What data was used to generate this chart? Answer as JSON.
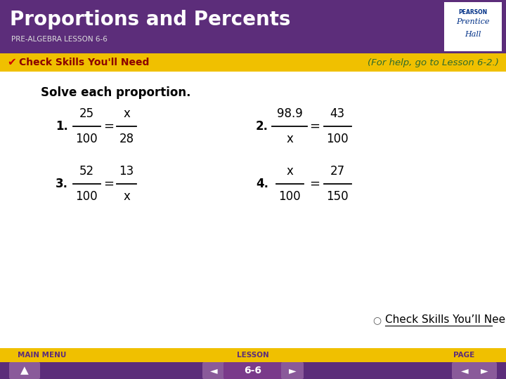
{
  "title": "Proportions and Percents",
  "subtitle": "PRE-ALGEBRA LESSON 6-6",
  "banner_text": "Check Skills You'll Need",
  "banner_right": "(For help, go to Lesson 6-2.)",
  "instruction": "Solve each proportion.",
  "problems": [
    {
      "num": "1.",
      "frac1_top": "25",
      "frac1_bot": "100",
      "frac2_top": "x",
      "frac2_bot": "28"
    },
    {
      "num": "2.",
      "frac1_top": "98.9",
      "frac1_bot": "x",
      "frac2_top": "43",
      "frac2_bot": "100"
    },
    {
      "num": "3.",
      "frac1_top": "52",
      "frac1_bot": "100",
      "frac2_top": "13",
      "frac2_bot": "x"
    },
    {
      "num": "4.",
      "frac1_top": "x",
      "frac1_bot": "100",
      "frac2_top": "27",
      "frac2_bot": "150"
    }
  ],
  "footer_left": "MAIN MENU",
  "footer_center": "LESSON",
  "footer_right": "PAGE",
  "lesson_num": "6-6",
  "check_skills_text": "Check Skills You’ll Need",
  "header_bg": "#5c2d7a",
  "banner_bg": "#f0c000",
  "footer_bg": "#f0c000",
  "nav_bg": "#5c2d7a",
  "body_bg": "#ffffff",
  "header_title_color": "#ffffff",
  "header_subtitle_color": "#dddddd",
  "banner_text_color": "#8b0000",
  "banner_right_color": "#2e6b2e",
  "body_text_color": "#000000",
  "footer_text_color": "#5c2d7a",
  "pearson_bg": "#ffffff",
  "pearson_text": "#003087"
}
